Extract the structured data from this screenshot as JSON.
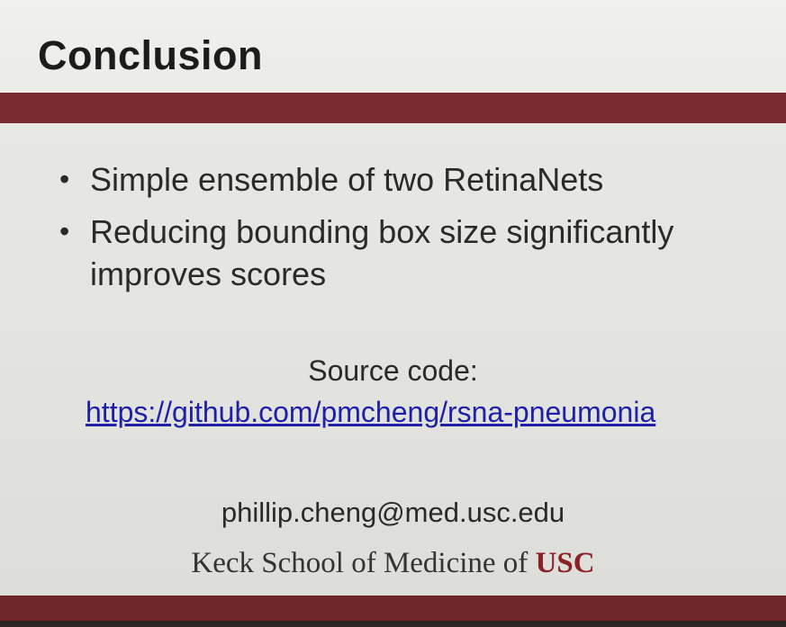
{
  "slide": {
    "title": "Conclusion",
    "bullets": [
      "Simple ensemble of two RetinaNets",
      "Reducing bounding box size significantly improves scores"
    ],
    "source_label": "Source code:",
    "source_link": "https://github.com/pmcheng/rsna-pneumonia",
    "email": "phillip.cheng@med.usc.edu",
    "logo": {
      "prefix": "Keck School of Medicine of ",
      "accent": "USC"
    },
    "colors": {
      "band": "#7a2b2f",
      "link": "#1f1fa8",
      "text": "#2a2a2a"
    }
  }
}
